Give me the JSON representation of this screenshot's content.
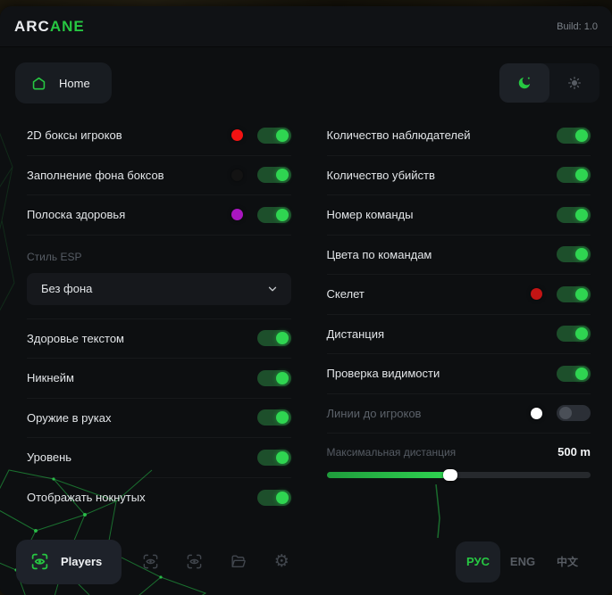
{
  "app": {
    "brand_primary": "ARC",
    "brand_accent": "ANE",
    "build": "Build: 1.0"
  },
  "nav": {
    "home_label": "Home"
  },
  "colors": {
    "accent_green": "#27c742",
    "toggle_on_track": "#1d4f2b",
    "toggle_knob_on": "#2fd551"
  },
  "panels": {
    "left": {
      "rows": [
        {
          "label": "2D боксы игроков",
          "dot": "#f31212",
          "on": true
        },
        {
          "label": "Заполнение фона боксов",
          "dot": "#131313",
          "on": true
        },
        {
          "label": "Полоска здоровья",
          "dot": "#a916c0",
          "on": true
        }
      ],
      "esp": {
        "label": "Стиль ESP",
        "selected": "Без фона"
      },
      "rows2": [
        {
          "label": "Здоровье текстом",
          "on": true
        },
        {
          "label": "Никнейм",
          "on": true
        },
        {
          "label": "Оружие в руках",
          "on": true
        },
        {
          "label": "Уровень",
          "on": true
        },
        {
          "label": "Отображать нокнутых",
          "on": true
        }
      ]
    },
    "right": {
      "rows": [
        {
          "label": "Количество наблюдателей",
          "on": true
        },
        {
          "label": "Количество убийств",
          "on": true
        },
        {
          "label": "Номер команды",
          "on": true
        },
        {
          "label": "Цвета по командам",
          "on": true
        },
        {
          "label": "Скелет",
          "dot": "#c31414",
          "on": true
        },
        {
          "label": "Дистанция",
          "on": true
        },
        {
          "label": "Проверка видимости",
          "on": true
        },
        {
          "label": "Линии до игроков",
          "dot": "#ffffff",
          "on": false,
          "dim": true
        }
      ],
      "slider": {
        "label": "Максимальная дистанция",
        "value": "500 m",
        "percent": 47
      }
    }
  },
  "footer": {
    "players_label": "Players",
    "icons": [
      "player-scan-icon",
      "player-scan-icon-2",
      "folder-icon",
      "gear-icon"
    ],
    "languages": [
      {
        "label": "РУС",
        "active": true
      },
      {
        "label": "ENG",
        "active": false
      },
      {
        "label": "中文",
        "active": false
      }
    ]
  }
}
